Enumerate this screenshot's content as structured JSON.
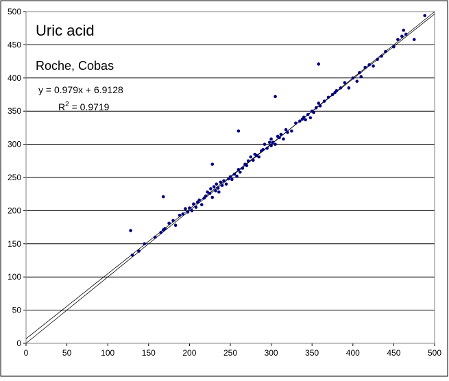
{
  "chart_data": {
    "type": "scatter",
    "title": "Uric acid",
    "subtitle": "Roche, Cobas",
    "equation": "y = 0.979x + 6.9128",
    "r2_label": {
      "base": "R",
      "sup": "2",
      "rest": " = 0.9719"
    },
    "trendline": {
      "slope": 0.979,
      "intercept": 6.9128
    },
    "identity_line": true,
    "color": "#000080",
    "grid": true,
    "xlim": [
      0,
      500
    ],
    "ylim": [
      0,
      500
    ],
    "xticks": [
      0,
      50,
      100,
      150,
      200,
      250,
      300,
      350,
      400,
      450,
      500
    ],
    "yticks": [
      0,
      50,
      100,
      150,
      200,
      250,
      300,
      350,
      400,
      450,
      500
    ],
    "x": [
      130,
      128,
      138,
      145,
      158,
      165,
      168,
      170,
      175,
      180,
      183,
      188,
      192,
      195,
      198,
      200,
      203,
      205,
      208,
      210,
      212,
      215,
      218,
      220,
      222,
      225,
      226,
      228,
      230,
      232,
      233,
      235,
      236,
      238,
      240,
      242,
      245,
      248,
      250,
      252,
      255,
      258,
      260,
      262,
      265,
      268,
      270,
      272,
      275,
      278,
      280,
      282,
      285,
      288,
      290,
      292,
      295,
      298,
      300,
      300,
      302,
      305,
      308,
      310,
      312,
      315,
      318,
      320,
      325,
      330,
      335,
      338,
      340,
      342,
      345,
      348,
      350,
      352,
      355,
      358,
      360,
      365,
      370,
      375,
      378,
      380,
      385,
      390,
      395,
      400,
      405,
      408,
      410,
      415,
      420,
      425,
      430,
      435,
      440,
      450,
      455,
      460,
      462,
      465,
      475,
      488,
      168,
      228,
      260,
      305,
      358
    ],
    "values": [
      133,
      170,
      139,
      150,
      160,
      167,
      171,
      173,
      181,
      185,
      178,
      193,
      195,
      203,
      198,
      204,
      200,
      210,
      205,
      213,
      216,
      209,
      219,
      222,
      228,
      226,
      233,
      220,
      236,
      230,
      240,
      234,
      228,
      243,
      238,
      245,
      240,
      248,
      251,
      247,
      255,
      252,
      262,
      258,
      264,
      270,
      268,
      275,
      281,
      276,
      285,
      283,
      281,
      290,
      292,
      300,
      294,
      303,
      298,
      308,
      303,
      300,
      312,
      310,
      315,
      308,
      322,
      318,
      320,
      332,
      335,
      338,
      341,
      337,
      345,
      340,
      350,
      348,
      355,
      362,
      358,
      365,
      371,
      375,
      378,
      381,
      385,
      393,
      385,
      400,
      395,
      408,
      402,
      416,
      420,
      418,
      428,
      433,
      440,
      447,
      458,
      463,
      472,
      466,
      458,
      494,
      221,
      270,
      320,
      372,
      421
    ]
  }
}
